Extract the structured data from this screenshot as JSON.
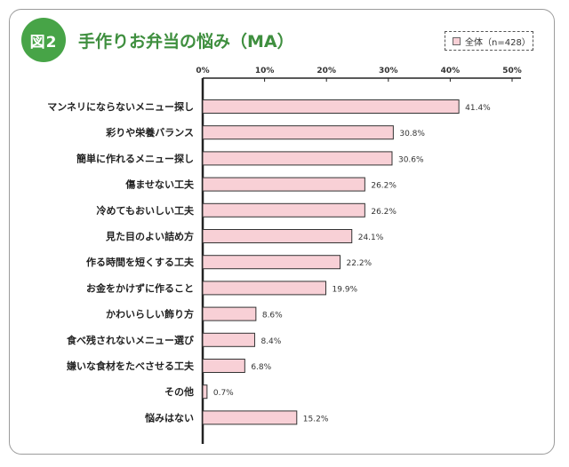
{
  "header": {
    "badge": "図2",
    "title": "手作りお弁当の悩み（MA）"
  },
  "legend": {
    "label": "全体（n=428）"
  },
  "colors": {
    "bar_fill": "#f8d0d6",
    "bar_stroke": "#333333",
    "accent": "#47a447"
  },
  "chart_data": {
    "type": "bar",
    "orientation": "horizontal",
    "title": "手作りお弁当の悩み（MA）",
    "xlim": [
      0,
      50
    ],
    "ticks": [
      "0%",
      "10%",
      "20%",
      "30%",
      "40%",
      "50%"
    ],
    "grid": false,
    "legend_position": "top-right",
    "categories": [
      "マンネリにならないメニュー探し",
      "彩りや栄養バランス",
      "簡単に作れるメニュー探し",
      "傷ませない工夫",
      "冷めてもおいしい工夫",
      "見た目のよい詰め方",
      "作る時間を短くする工夫",
      "お金をかけずに作ること",
      "かわいらしい飾り方",
      "食べ残されないメニュー選び",
      "嫌いな食材をたべさせる工夫",
      "その他",
      "悩みはない"
    ],
    "series": [
      {
        "name": "全体（n=428）",
        "values": [
          41.4,
          30.8,
          30.6,
          26.2,
          26.2,
          24.1,
          22.2,
          19.9,
          8.6,
          8.4,
          6.8,
          0.7,
          15.2
        ],
        "labels": [
          "41.4%",
          "30.8%",
          "30.6%",
          "26.2%",
          "26.2%",
          "24.1%",
          "22.2%",
          "19.9%",
          "8.6%",
          "8.4%",
          "6.8%",
          "0.7%",
          "15.2%"
        ]
      }
    ]
  }
}
